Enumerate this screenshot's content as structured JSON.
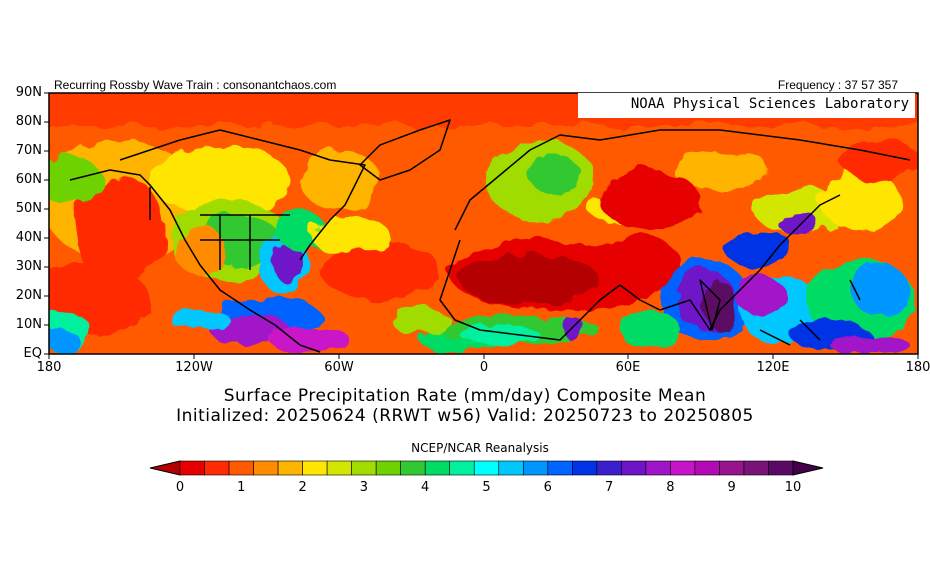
{
  "header": {
    "left": "Recurring Rossby Wave Train : consonantchaos.com",
    "right": "Frequency : 37 57 357"
  },
  "lab_name": "NOAA Physical Sciences Laboratory",
  "axes": {
    "lat_labels": [
      "90N",
      "80N",
      "70N",
      "60N",
      "50N",
      "40N",
      "30N",
      "20N",
      "10N",
      "EQ"
    ],
    "lon_labels": [
      "180",
      "120W",
      "60W",
      "0",
      "60E",
      "120E",
      "180"
    ]
  },
  "title": {
    "line1": "Surface Precipitation Rate (mm/day) Composite Mean",
    "line2": "Initialized: 20250624 (RRWT w56) Valid: 20250723 to 20250805"
  },
  "source": "NCEP/NCAR Reanalysis",
  "colorbar": {
    "labels": [
      "0",
      "1",
      "2",
      "3",
      "4",
      "5",
      "6",
      "7",
      "8",
      "9",
      "10"
    ],
    "colors": [
      "#e60000",
      "#ff2a00",
      "#ff5a00",
      "#ff8c00",
      "#ffb400",
      "#ffe600",
      "#d2e600",
      "#a0dc00",
      "#6ed200",
      "#32c832",
      "#00dc64",
      "#00f0a0",
      "#00ffff",
      "#00c8ff",
      "#0096ff",
      "#0064ff",
      "#0032e6",
      "#3c1ecc",
      "#6e14c8",
      "#a014c8",
      "#c814c8",
      "#b40ab4",
      "#96148c",
      "#781478",
      "#5a0a64"
    ],
    "under_color": "#b40000",
    "over_color": "#46004b"
  }
}
